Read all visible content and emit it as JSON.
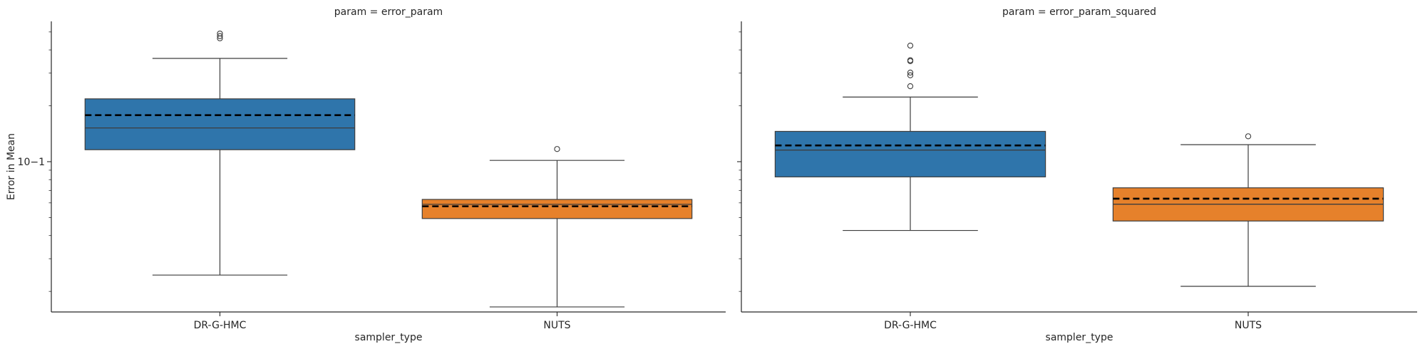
{
  "chart_data": {
    "type": "box",
    "y_scale": "log",
    "ylabel": "Error in Mean",
    "xlabel": "sampler_type",
    "categories": [
      "DR-G-HMC",
      "NUTS"
    ],
    "category_colors": {
      "DR-G-HMC": "#2f75ab",
      "NUTS": "#e6812b"
    },
    "mean_line": {
      "style": "dashed",
      "color": "#000000"
    },
    "ylim": [
      0.0155,
      0.57
    ],
    "y_tick_labels": [
      {
        "value": 0.1,
        "label": "10−1"
      }
    ],
    "grid": false,
    "legend": "none",
    "panels": [
      {
        "title": "param = error_param",
        "boxes": [
          {
            "category": "DR-G-HMC",
            "whisker_low": 0.0245,
            "q1": 0.116,
            "median": 0.152,
            "q3": 0.218,
            "whisker_high": 0.36,
            "mean": 0.178,
            "outliers": [
              0.462,
              0.475,
              0.49
            ]
          },
          {
            "category": "NUTS",
            "whisker_low": 0.0165,
            "q1": 0.0494,
            "median": 0.0589,
            "q3": 0.0626,
            "whisker_high": 0.1016,
            "mean": 0.0575,
            "outliers": [
              0.117
            ]
          }
        ]
      },
      {
        "title": "param = error_param_squared",
        "boxes": [
          {
            "category": "DR-G-HMC",
            "whisker_low": 0.0426,
            "q1": 0.0828,
            "median": 0.1155,
            "q3": 0.1456,
            "whisker_high": 0.223,
            "mean": 0.1223,
            "outliers": [
              0.255,
              0.292,
              0.302,
              0.348,
              0.352,
              0.422
            ]
          },
          {
            "category": "NUTS",
            "whisker_low": 0.0213,
            "q1": 0.0479,
            "median": 0.059,
            "q3": 0.0723,
            "whisker_high": 0.1235,
            "mean": 0.0632,
            "outliers": [
              0.137
            ]
          }
        ]
      }
    ]
  }
}
